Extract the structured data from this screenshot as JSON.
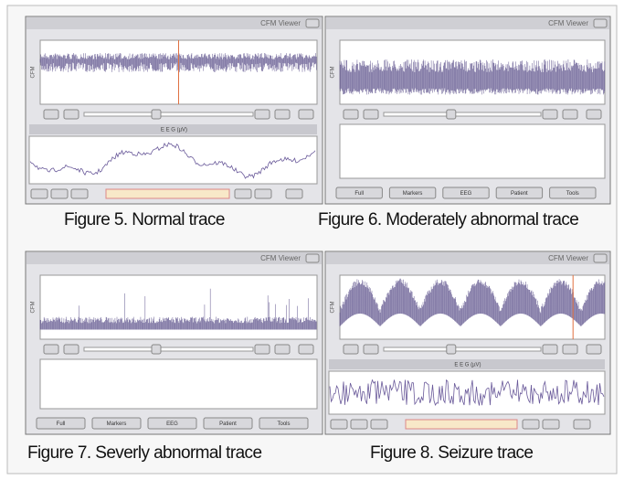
{
  "panels": [
    {
      "title": "CFM Viewer",
      "cfm_label": "CFM",
      "eeg_label": "E E G (µV)",
      "caption": "Figure 5. Normal trace"
    },
    {
      "title": "CFM Viewer",
      "cfm_label": "CFM",
      "buttons": [
        "Full",
        "Markers",
        "EEG",
        "Patient",
        "Tools"
      ],
      "caption": "Figure 6. Moderately abnormal trace"
    },
    {
      "title": "CFM Viewer",
      "cfm_label": "CFM",
      "buttons": [
        "Full",
        "Markers",
        "EEG",
        "Patient",
        "Tools"
      ],
      "caption": "Figure 7. Severly abnormal trace"
    },
    {
      "title": "CFM Viewer",
      "cfm_label": "CFM",
      "eeg_label": "E E G (µV)",
      "caption": "Figure 8. Seizure trace"
    }
  ]
}
